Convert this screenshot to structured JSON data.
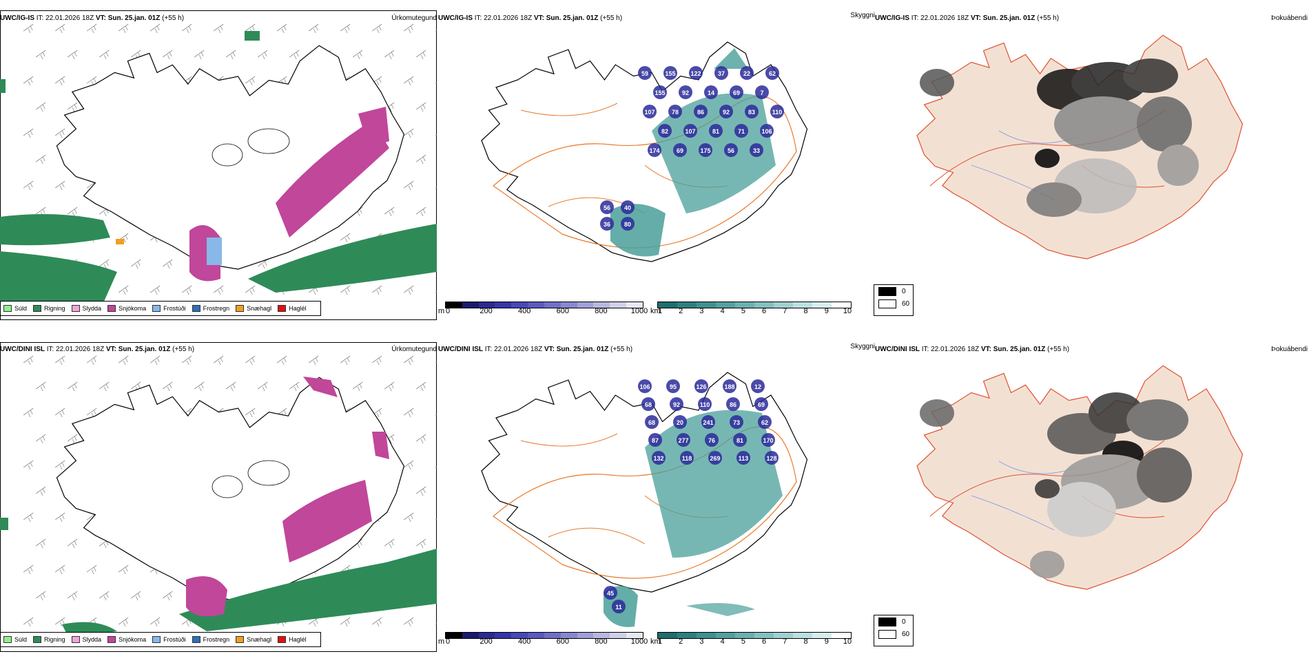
{
  "rows": [
    {
      "model": "UWC/IG-IS",
      "header_rest": " IT: 22.01.2026 18Z ",
      "vt_label": "VT: Sun. 25.jan. 01Z",
      "lead": " (+55 h)"
    },
    {
      "model": "UWC/DINI ISL",
      "header_rest": " IT: 22.01.2026 18Z ",
      "vt_label": "VT: Sun. 25.jan. 01Z",
      "lead": " (+55 h)"
    }
  ],
  "panel_titles": {
    "precip": "Úrkomutegund",
    "visibility": "Skyggni",
    "fog": "Þokuábendi"
  },
  "precip_legend": [
    {
      "label": "Súld",
      "color": "#90ee90"
    },
    {
      "label": "Rigning",
      "color": "#2e8b57"
    },
    {
      "label": "Slydda",
      "color": "#f4a6d7"
    },
    {
      "label": "Snjókoma",
      "color": "#c0479a"
    },
    {
      "label": "Frostúði",
      "color": "#87b8e8"
    },
    {
      "label": "Frostregn",
      "color": "#2f6fb8"
    },
    {
      "label": "Snæhagl",
      "color": "#f0a020"
    },
    {
      "label": "Haglél",
      "color": "#e01010"
    }
  ],
  "ceiling_bar": {
    "unit": "m",
    "labels": [
      "0",
      "200",
      "400",
      "600",
      "800",
      "1000"
    ],
    "colors": [
      "#000000",
      "#1a1a6e",
      "#2a2a90",
      "#3636a8",
      "#4848b8",
      "#5a5ac0",
      "#7070c8",
      "#8888d0",
      "#a0a0d8",
      "#b8b8e0",
      "#d0d0ea",
      "#e8e8f4"
    ]
  },
  "visibility_bar": {
    "unit": "km",
    "labels": [
      "1",
      "2",
      "3",
      "4",
      "5",
      "6",
      "7",
      "8",
      "9",
      "10"
    ],
    "colors": [
      "#1f6e6e",
      "#2e8080",
      "#3f9090",
      "#55a0a0",
      "#6cb0b0",
      "#85c0c0",
      "#a0d0d0",
      "#bce0e0",
      "#d8eeee",
      "#ffffff"
    ]
  },
  "fog_legend": [
    {
      "label": "0",
      "color": "#000000"
    },
    {
      "label": "60",
      "color": "#ffffff"
    }
  ],
  "ceiling_labels_top": [
    "59",
    "155",
    "122",
    "37",
    "22",
    "62",
    "155",
    "92",
    "14",
    "69",
    "7",
    "107",
    "78",
    "86",
    "92",
    "83",
    "110",
    "82",
    "107",
    "81",
    "71",
    "106",
    "174",
    "69",
    "175",
    "56",
    "33",
    "40",
    "56",
    "80",
    "36"
  ],
  "ceiling_labels_bottom": [
    "106",
    "95",
    "126",
    "188",
    "12",
    "68",
    "92",
    "110",
    "86",
    "69",
    "68",
    "20",
    "241",
    "73",
    "62",
    "87",
    "277",
    "76",
    "81",
    "170",
    "132",
    "118",
    "269",
    "113",
    "128",
    "11",
    "45"
  ],
  "colors": {
    "rain": "#2e8b57",
    "snow": "#c0479a",
    "ceiling_blue": "#2a2a9a",
    "vis_teal": "#4a9f9a",
    "fog_land": "#f2e1d3",
    "roads": "#e87a2a",
    "coast": "#000000"
  }
}
